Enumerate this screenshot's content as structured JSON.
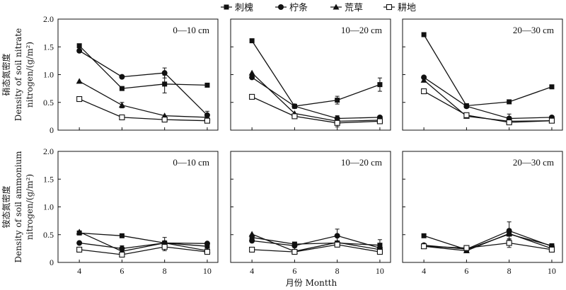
{
  "chart_data": {
    "type": "line",
    "legend_placement": "top-center",
    "legend": [
      {
        "name": "刺槐",
        "marker": "filled-square"
      },
      {
        "name": "柠条",
        "marker": "filled-circle"
      },
      {
        "name": "荒草",
        "marker": "filled-triangle"
      },
      {
        "name": "耕地",
        "marker": "open-square"
      }
    ],
    "xlabel": "月份 Montth",
    "x_ticks": [
      4,
      6,
      8,
      10
    ],
    "rows": [
      {
        "ylabel_cn": "硝态氮密度",
        "ylabel_en_1": "Density of soil nitrate",
        "ylabel_en_2": "nitrogen/(g/m²)",
        "ylim": [
          0,
          2.0
        ],
        "y_ticks": [
          "0",
          "0.5",
          "1.0",
          "1.5",
          "2.0"
        ],
        "panels": [
          {
            "depth": "0—10 cm",
            "series": [
              {
                "name": "刺槐",
                "values": [
                  1.52,
                  0.75,
                  0.83,
                  0.81
                ],
                "errors": [
                  0,
                  0,
                  0.16,
                  0
                ]
              },
              {
                "name": "柠条",
                "values": [
                  1.43,
                  0.96,
                  1.03,
                  0.27
                ],
                "errors": [
                  0,
                  0,
                  0.09,
                  0.07
                ]
              },
              {
                "name": "荒草",
                "values": [
                  0.88,
                  0.45,
                  0.26,
                  0.23
                ],
                "errors": [
                  0,
                  0.05,
                  0,
                  0
                ]
              },
              {
                "name": "耕地",
                "values": [
                  0.56,
                  0.23,
                  0.19,
                  0.17
                ],
                "errors": [
                  0,
                  0,
                  0,
                  0.03
                ]
              }
            ]
          },
          {
            "depth": "10—20 cm",
            "series": [
              {
                "name": "刺槐",
                "values": [
                  1.61,
                  0.43,
                  0.54,
                  0.82
                ],
                "errors": [
                  0,
                  0,
                  0.07,
                  0.12
                ]
              },
              {
                "name": "柠条",
                "values": [
                  0.95,
                  0.43,
                  0.21,
                  0.23
                ],
                "errors": [
                  0,
                  0,
                  0,
                  0
                ]
              },
              {
                "name": "荒草",
                "values": [
                  1.03,
                  0.3,
                  0.16,
                  0.18
                ],
                "errors": [
                  0,
                  0,
                  0.1,
                  0
                ]
              },
              {
                "name": "耕地",
                "values": [
                  0.6,
                  0.25,
                  0.13,
                  0.16
                ],
                "errors": [
                  0,
                  0,
                  0,
                  0
                ]
              }
            ]
          },
          {
            "depth": "20—30 cm",
            "series": [
              {
                "name": "刺槐",
                "values": [
                  1.72,
                  0.44,
                  0.51,
                  0.78
                ],
                "errors": [
                  0,
                  0,
                  0,
                  0
                ]
              },
              {
                "name": "柠条",
                "values": [
                  0.95,
                  0.43,
                  0.21,
                  0.23
                ],
                "errors": [
                  0,
                  0,
                  0.08,
                  0
                ]
              },
              {
                "name": "荒草",
                "values": [
                  0.9,
                  0.25,
                  0.16,
                  0.17
                ],
                "errors": [
                  0,
                  0,
                  0,
                  0
                ]
              },
              {
                "name": "耕地",
                "values": [
                  0.7,
                  0.27,
                  0.14,
                  0.17
                ],
                "errors": [
                  0,
                  0,
                  0,
                  0
                ]
              }
            ]
          }
        ]
      },
      {
        "ylabel_cn": "铵态氮密度",
        "ylabel_en_1": "Density of soil ammonium",
        "ylabel_en_2": "nitrogen/(g/m²)",
        "ylim": [
          0,
          2.0
        ],
        "y_ticks": [
          "0",
          "0.5",
          "1.0",
          "1.5",
          "2.0"
        ],
        "panels": [
          {
            "depth": "0—10 cm",
            "series": [
              {
                "name": "刺槐",
                "values": [
                  0.53,
                  0.48,
                  0.35,
                  0.29
                ],
                "errors": [
                  0,
                  0,
                  0,
                  0
                ]
              },
              {
                "name": "柠条",
                "values": [
                  0.35,
                  0.25,
                  0.35,
                  0.34
                ],
                "errors": [
                  0,
                  0.05,
                  0.1,
                  0
                ]
              },
              {
                "name": "荒草",
                "values": [
                  0.55,
                  0.2,
                  0.35,
                  0.21
                ],
                "errors": [
                  0,
                  0,
                  0,
                  0
                ]
              },
              {
                "name": "耕地",
                "values": [
                  0.23,
                  0.14,
                  0.28,
                  0.19
                ],
                "errors": [
                  0,
                  0,
                  0.07,
                  0.03
                ]
              }
            ]
          },
          {
            "depth": "10—20 cm",
            "series": [
              {
                "name": "刺槐",
                "values": [
                  0.45,
                  0.33,
                  0.35,
                  0.31
                ],
                "errors": [
                  0,
                  0,
                  0,
                  0.1
                ]
              },
              {
                "name": "柠条",
                "values": [
                  0.39,
                  0.3,
                  0.48,
                  0.26
                ],
                "errors": [
                  0,
                  0,
                  0.12,
                  0
                ]
              },
              {
                "name": "荒草",
                "values": [
                  0.51,
                  0.2,
                  0.36,
                  0.23
                ],
                "errors": [
                  0,
                  0,
                  0,
                  0
                ]
              },
              {
                "name": "耕地",
                "values": [
                  0.23,
                  0.19,
                  0.32,
                  0.19
                ],
                "errors": [
                  0,
                  0,
                  0,
                  0
                ]
              }
            ]
          },
          {
            "depth": "20—30 cm",
            "series": [
              {
                "name": "刺槐",
                "values": [
                  0.48,
                  0.23,
                  0.51,
                  0.3
                ],
                "errors": [
                  0,
                  0,
                  0,
                  0
                ]
              },
              {
                "name": "柠条",
                "values": [
                  0.31,
                  0.24,
                  0.57,
                  0.29
                ],
                "errors": [
                  0,
                  0,
                  0.16,
                  0
                ]
              },
              {
                "name": "荒草",
                "values": [
                  0.29,
                  0.21,
                  0.52,
                  0.25
                ],
                "errors": [
                  0,
                  0,
                  0,
                  0
                ]
              },
              {
                "name": "耕地",
                "values": [
                  0.29,
                  0.26,
                  0.35,
                  0.23
                ],
                "errors": [
                  0,
                  0,
                  0.08,
                  0
                ]
              }
            ]
          }
        ]
      }
    ]
  }
}
